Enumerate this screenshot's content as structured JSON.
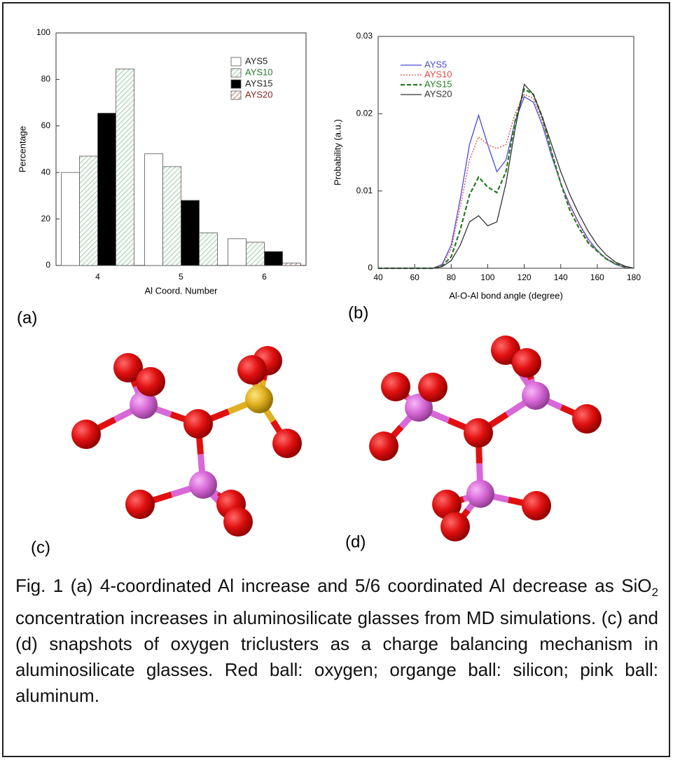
{
  "chart_data": [
    {
      "type": "bar",
      "ylabel": "Percentage",
      "xlabel": "Al Coord. Number",
      "categories": [
        "4",
        "5",
        "6"
      ],
      "series": [
        {
          "name": "AYS5",
          "color": "#ffffff",
          "hatch": false,
          "label_color": "#222222",
          "values": [
            40,
            48,
            11.5
          ]
        },
        {
          "name": "AYS10",
          "color": "#a9d3b4",
          "hatch": true,
          "label_color": "#2a7a2a",
          "values": [
            47,
            42.5,
            10
          ]
        },
        {
          "name": "AYS15",
          "color": "#000000",
          "hatch": false,
          "label_color": "#222222",
          "values": [
            65.5,
            28,
            6
          ]
        },
        {
          "name": "AYS20",
          "color": "#d48c8c",
          "hatch": true,
          "label_color": "#8b2020",
          "values": [
            84.5,
            14,
            1
          ]
        }
      ],
      "ylim": [
        0,
        100
      ],
      "yticks": [
        0,
        20,
        40,
        60,
        80,
        100
      ]
    },
    {
      "type": "line",
      "ylabel": "Probability (a.u.)",
      "xlabel": "Al-O-Al bond angle (degree)",
      "x": [
        40,
        45,
        50,
        55,
        60,
        65,
        70,
        75,
        80,
        85,
        90,
        95,
        100,
        105,
        110,
        115,
        120,
        125,
        130,
        135,
        140,
        145,
        150,
        155,
        160,
        165,
        170,
        175,
        180
      ],
      "series": [
        {
          "name": "AYS5",
          "color": "#4a4ae0",
          "dash": "solid",
          "values": [
            0,
            0,
            0,
            0,
            0,
            0,
            0,
            0.0005,
            0.003,
            0.009,
            0.016,
            0.0198,
            0.016,
            0.0125,
            0.014,
            0.019,
            0.0222,
            0.0215,
            0.0185,
            0.0145,
            0.011,
            0.0082,
            0.0058,
            0.0038,
            0.0023,
            0.0012,
            0.0005,
            0.0001,
            0
          ]
        },
        {
          "name": "AYS10",
          "color": "#e04848",
          "dash": "dotted",
          "values": [
            0,
            0,
            0,
            0,
            0,
            0,
            0,
            0.0004,
            0.0025,
            0.008,
            0.014,
            0.017,
            0.016,
            0.0155,
            0.016,
            0.02,
            0.0225,
            0.022,
            0.019,
            0.015,
            0.011,
            0.008,
            0.0057,
            0.0035,
            0.0022,
            0.0013,
            0.0006,
            0.0001,
            0
          ]
        },
        {
          "name": "AYS15",
          "color": "#237a23",
          "dash": "dashed",
          "values": [
            0,
            0,
            0,
            0,
            0,
            0,
            0,
            0.0003,
            0.0015,
            0.005,
            0.0095,
            0.0118,
            0.0105,
            0.0098,
            0.0125,
            0.019,
            0.0232,
            0.0225,
            0.0195,
            0.015,
            0.011,
            0.0075,
            0.0052,
            0.0033,
            0.0022,
            0.0012,
            0.0006,
            0.0002,
            0
          ]
        },
        {
          "name": "AYS20",
          "color": "#333333",
          "dash": "solid",
          "values": [
            0,
            0,
            0,
            0,
            0,
            0,
            0,
            0.0002,
            0.001,
            0.003,
            0.006,
            0.0068,
            0.0055,
            0.006,
            0.011,
            0.018,
            0.0238,
            0.0225,
            0.0195,
            0.016,
            0.0125,
            0.0095,
            0.007,
            0.0048,
            0.003,
            0.0017,
            0.0008,
            0.0003,
            0
          ]
        }
      ],
      "xlim": [
        40,
        180
      ],
      "xticks": [
        40,
        60,
        80,
        100,
        120,
        140,
        160,
        180
      ],
      "ylim": [
        0,
        0.03
      ],
      "yticks": [
        0,
        0.01,
        0.02,
        0.03
      ]
    }
  ],
  "panels": [
    "(a)",
    "(b)",
    "(c)",
    "(d)"
  ],
  "caption": {
    "before": "Fig. 1 (a) 4-coordinated Al increase and 5/6 coordinated Al decrease as ",
    "formula": "SiO",
    "subscript": "2",
    "after": " concentration increases in aluminosilicate glasses from MD simulations. (c) and (d) snapshots of oxygen triclusters as a charge balancing mechanism in aluminosilicate glasses. Red ball: oxygen; organge ball: silicon; pink ball: aluminum."
  }
}
